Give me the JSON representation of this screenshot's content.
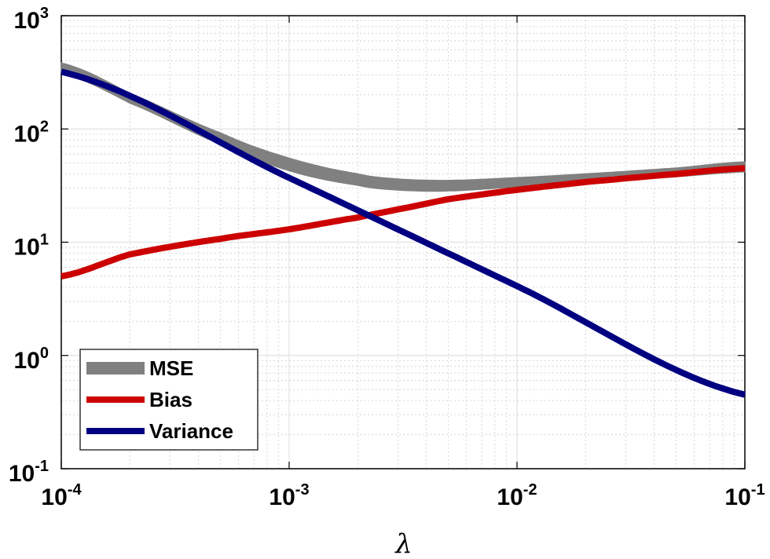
{
  "chart_data": {
    "type": "line",
    "xscale": "log",
    "yscale": "log",
    "xlim": [
      0.0001,
      0.1
    ],
    "ylim": [
      0.1,
      1000
    ],
    "xlabel": "λ",
    "ylabel": "",
    "grid": true,
    "minor_grid": true,
    "legend_position": "bottom-left",
    "x_ticks": [
      {
        "base": "10",
        "exp": "-4",
        "value": 0.0001
      },
      {
        "base": "10",
        "exp": "-3",
        "value": 0.001
      },
      {
        "base": "10",
        "exp": "-2",
        "value": 0.01
      },
      {
        "base": "10",
        "exp": "-1",
        "value": 0.1
      }
    ],
    "y_ticks": [
      {
        "base": "10",
        "exp": "-1",
        "value": 0.1
      },
      {
        "base": "10",
        "exp": "0",
        "value": 1
      },
      {
        "base": "10",
        "exp": "1",
        "value": 10
      },
      {
        "base": "10",
        "exp": "2",
        "value": 100
      },
      {
        "base": "10",
        "exp": "3",
        "value": 1000
      }
    ],
    "series": [
      {
        "name": "MSE",
        "color": "#808080",
        "style": "band",
        "x": [
          0.0001,
          0.0002,
          0.0005,
          0.001,
          0.002,
          0.003,
          0.005,
          0.01,
          0.02,
          0.05,
          0.1
        ],
        "lower": [
          310,
          170,
          74,
          43,
          32,
          29,
          28.5,
          31,
          34,
          38,
          42
        ],
        "upper": [
          380,
          205,
          92,
          55,
          40,
          36,
          35,
          37,
          40,
          45,
          51
        ]
      },
      {
        "name": "Bias",
        "color": "#cc0000",
        "style": "line",
        "x": [
          0.0001,
          0.0002,
          0.0005,
          0.001,
          0.002,
          0.003,
          0.005,
          0.01,
          0.02,
          0.05,
          0.1
        ],
        "values": [
          5.0,
          7.8,
          10.7,
          13.0,
          16.5,
          19.5,
          24.0,
          29.0,
          34.0,
          40.0,
          45.0
        ]
      },
      {
        "name": "Variance",
        "color": "#000080",
        "style": "line",
        "x": [
          0.0001,
          0.001,
          0.01,
          0.1
        ],
        "values": [
          320,
          37,
          4.1,
          0.45
        ]
      }
    ]
  }
}
